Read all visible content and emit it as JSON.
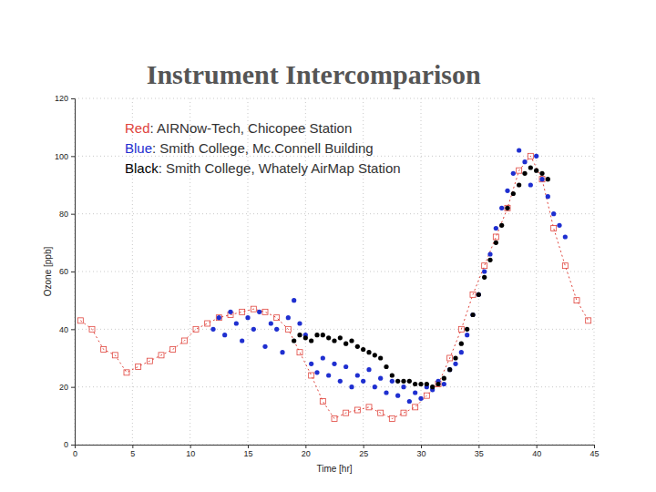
{
  "chart_data": {
    "type": "scatter",
    "title": "Instrument Intercomparison",
    "x_label": "Time [hr]",
    "y_label": "Ozone [ppb]",
    "xlim": [
      0,
      45
    ],
    "ylim": [
      0,
      120
    ],
    "xticks": [
      0,
      5,
      10,
      15,
      20,
      25,
      30,
      35,
      40,
      45
    ],
    "yticks": [
      0,
      20,
      40,
      60,
      80,
      100,
      120
    ],
    "grid": true,
    "legend": "upper left",
    "series": [
      {
        "name": "Red: AIRNow-Tech, Chicopee Station",
        "color": "#e0443c",
        "type": "line",
        "marker": "square",
        "line_style": "dotted",
        "x": [
          0.5,
          1.5,
          2.5,
          3.5,
          4.5,
          5.5,
          6.5,
          7.5,
          8.5,
          9.5,
          10.5,
          11.5,
          12.5,
          13.5,
          14.5,
          15.5,
          16.5,
          17.5,
          18.5,
          19.5,
          20.5,
          21.5,
          22.5,
          23.5,
          24.5,
          25.5,
          26.5,
          27.5,
          28.5,
          29.5,
          30.5,
          31.5,
          32.5,
          33.5,
          34.5,
          35.5,
          36.5,
          37.5,
          38.5,
          39.5,
          40.5,
          41.5,
          42.5,
          43.5,
          44.5
        ],
        "values": [
          43,
          40,
          33,
          31,
          25,
          27,
          29,
          31,
          33,
          36,
          40,
          42,
          44,
          45,
          46,
          47,
          46,
          44,
          40,
          32,
          24,
          15,
          9,
          11,
          12,
          13,
          11,
          9,
          11,
          13,
          17,
          21,
          30,
          40,
          52,
          62,
          72,
          82,
          95,
          100,
          92,
          75,
          62,
          50,
          43
        ]
      },
      {
        "name": "Blue: Smith College, Mc.Connell Building",
        "color": "#1f2fd0",
        "type": "scatter",
        "marker": "circle",
        "x": [
          12,
          12.5,
          13,
          13.5,
          14,
          14.5,
          15,
          15.5,
          16,
          16.5,
          17,
          17.5,
          18,
          18.5,
          19,
          19.5,
          20,
          20.5,
          21,
          21.5,
          22,
          22.5,
          23,
          23.5,
          24,
          24.5,
          25,
          25.5,
          26,
          26.5,
          27,
          27.5,
          28,
          28.5,
          29,
          29.5,
          30,
          30.5,
          31,
          31.5,
          32,
          32.5,
          33,
          33.5,
          34,
          34.5,
          35,
          35.5,
          36,
          36.5,
          37,
          37.5,
          38,
          38.5,
          39,
          39.5,
          40,
          40.5,
          41,
          41.5,
          42,
          42.5
        ],
        "values": [
          40,
          44,
          38,
          46,
          42,
          36,
          44,
          40,
          46,
          34,
          42,
          40,
          32,
          44,
          50,
          42,
          38,
          28,
          25,
          30,
          24,
          28,
          22,
          27,
          20,
          24,
          22,
          26,
          20,
          23,
          18,
          22,
          17,
          20,
          15,
          18,
          16,
          20,
          19,
          22,
          21,
          26,
          28,
          32,
          38,
          45,
          52,
          60,
          66,
          75,
          82,
          88,
          94,
          102,
          98,
          90,
          100,
          92,
          86,
          80,
          76,
          72
        ]
      },
      {
        "name": "Black: Smith College, Whately AirMap Station",
        "color": "#000000",
        "type": "scatter",
        "marker": "circle",
        "x": [
          19,
          19.5,
          20,
          20.5,
          21,
          21.5,
          22,
          22.5,
          23,
          23.5,
          24,
          24.5,
          25,
          25.5,
          26,
          26.5,
          27,
          27.5,
          28,
          28.5,
          29,
          29.5,
          30,
          30.5,
          31,
          31.5,
          32,
          32.5,
          33,
          33.5,
          34,
          34.5,
          35,
          35.5,
          36,
          36.5,
          37,
          37.5,
          38,
          38.5,
          39,
          39.5,
          40,
          40.5,
          41
        ],
        "values": [
          36,
          38,
          37,
          36,
          38,
          38,
          37,
          36,
          37,
          35,
          36,
          34,
          33,
          32,
          31,
          30,
          27,
          24,
          22,
          22,
          22,
          21,
          21,
          21,
          20,
          21,
          23,
          26,
          30,
          35,
          40,
          45,
          52,
          58,
          64,
          70,
          76,
          82,
          87,
          90,
          94,
          96,
          95,
          94,
          92
        ]
      }
    ]
  }
}
